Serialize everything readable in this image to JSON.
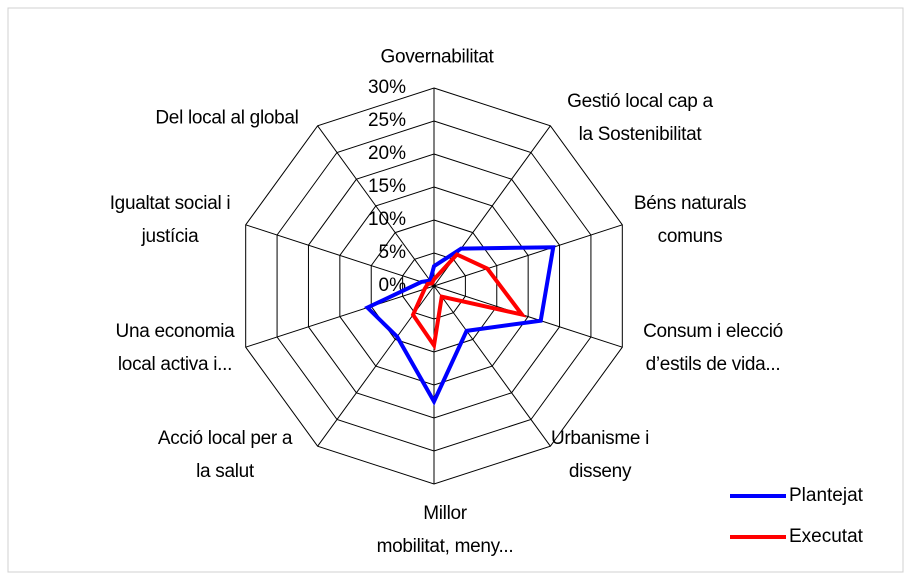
{
  "chart_data": {
    "type": "radar",
    "categories": [
      "Governabilitat",
      "Gestió local cap a\nla Sostenibilitat",
      "Béns naturals\ncomuns",
      "Consum i elecció\nd’estils de vida...",
      "Urbanisme i\ndisseny",
      "Millor\nmobilitat, meny...",
      "Acció local per a\nla salut",
      "Una economia\nlocal activa i...",
      "Igualtat social i\njustícia",
      "Del local al global"
    ],
    "series": [
      {
        "name": "Plantejat",
        "color": "#0000ff",
        "values": [
          3,
          7,
          19,
          17,
          8.4,
          17.5,
          9.5,
          10.6,
          2,
          1
        ]
      },
      {
        "name": "Executat",
        "color": "#ff0000",
        "values": [
          1,
          5.9,
          8.5,
          14,
          2,
          9,
          5.4,
          1.5,
          1,
          0.5
        ]
      }
    ],
    "ylim": [
      0,
      30
    ],
    "yticks": [
      {
        "value": 0,
        "label": "0%"
      },
      {
        "value": 5,
        "label": "5%"
      },
      {
        "value": 10,
        "label": "10%"
      },
      {
        "value": 15,
        "label": "15%"
      },
      {
        "value": 20,
        "label": "20%"
      },
      {
        "value": 25,
        "label": "25%"
      },
      {
        "value": 30,
        "label": "30%"
      }
    ],
    "grid": true,
    "legend": "bottom-right"
  }
}
